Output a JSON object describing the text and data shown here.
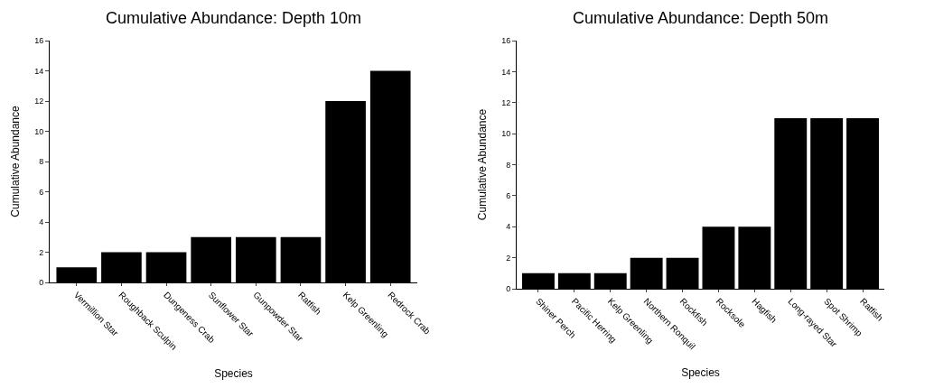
{
  "chart_data": [
    {
      "type": "bar",
      "title": "Cumulative Abundance: Depth 10m",
      "xlabel": "Species",
      "ylabel": "Cumulative Abundance",
      "categories": [
        "Vermillion Star",
        "Roughback Sculpin",
        "Dungeness Crab",
        "Sunflower Star",
        "Gunpowder Star",
        "Ratfish",
        "Kelp Greenling",
        "Redrock Crab"
      ],
      "values": [
        1,
        2,
        2,
        3,
        3,
        3,
        12,
        14
      ],
      "color": "#000000",
      "ylim": [
        0,
        16
      ],
      "yticks": [
        0,
        2,
        4,
        6,
        8,
        10,
        12,
        14,
        16
      ]
    },
    {
      "type": "bar",
      "title": "Cumulative Abundance: Depth 50m",
      "xlabel": "Species",
      "ylabel": "Cumulative Abundance",
      "categories": [
        "Shiner Perch",
        "Pacific Herring",
        "Kelp Greenling",
        "Northern Ronquil",
        "Rockfish",
        "Rocksole",
        "Hagfish",
        "Long-rayed Star",
        "Spot Shrimp",
        "Ratfish"
      ],
      "values": [
        1,
        1,
        1,
        2,
        2,
        4,
        4,
        11,
        11,
        11
      ],
      "color": "#000000",
      "ylim": [
        0,
        16
      ],
      "yticks": [
        0,
        2,
        4,
        6,
        8,
        10,
        12,
        14,
        16
      ]
    }
  ]
}
